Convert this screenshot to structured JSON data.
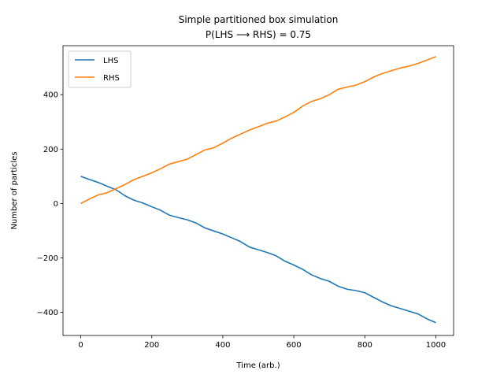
{
  "chart_data": {
    "type": "line",
    "title": "Simple partitioned box simulation",
    "subtitle": "P(LHS ⟶ RHS) = 0.75",
    "xlabel": "Time (arb.)",
    "ylabel": "Number of particles",
    "xlim": [
      -50,
      1050
    ],
    "ylim": [
      -485,
      580
    ],
    "xticks": [
      0,
      200,
      400,
      600,
      800,
      1000
    ],
    "yticks": [
      -400,
      -200,
      0,
      200,
      400
    ],
    "ytick_labels": [
      "−400",
      "−200",
      "0",
      "200",
      "400"
    ],
    "grid": false,
    "legend": "top-left",
    "series": [
      {
        "name": "LHS",
        "color": "#1f77b4",
        "x": [
          0,
          25,
          50,
          75,
          100,
          125,
          150,
          175,
          200,
          225,
          250,
          275,
          300,
          325,
          350,
          375,
          400,
          425,
          450,
          475,
          500,
          525,
          550,
          575,
          600,
          625,
          650,
          675,
          700,
          725,
          750,
          775,
          800,
          825,
          850,
          875,
          900,
          925,
          950,
          975,
          1000
        ],
        "y": [
          100,
          88,
          77,
          63,
          50,
          28,
          12,
          2,
          -12,
          -25,
          -43,
          -52,
          -60,
          -72,
          -90,
          -101,
          -112,
          -126,
          -140,
          -160,
          -170,
          -180,
          -192,
          -212,
          -226,
          -242,
          -262,
          -276,
          -286,
          -304,
          -315,
          -320,
          -328,
          -345,
          -362,
          -376,
          -386,
          -396,
          -406,
          -424,
          -438
        ]
      },
      {
        "name": "RHS",
        "color": "#ff7f0e",
        "x": [
          0,
          25,
          50,
          75,
          100,
          125,
          150,
          175,
          200,
          225,
          250,
          275,
          300,
          325,
          350,
          375,
          400,
          425,
          450,
          475,
          500,
          525,
          550,
          575,
          600,
          625,
          650,
          675,
          700,
          725,
          750,
          775,
          800,
          825,
          850,
          875,
          900,
          925,
          950,
          975,
          1000
        ],
        "y": [
          0,
          17,
          32,
          40,
          55,
          70,
          88,
          100,
          113,
          128,
          145,
          154,
          163,
          180,
          197,
          205,
          222,
          240,
          255,
          270,
          282,
          295,
          303,
          318,
          335,
          358,
          375,
          385,
          400,
          420,
          428,
          435,
          448,
          465,
          478,
          488,
          498,
          505,
          515,
          527,
          540
        ]
      }
    ]
  }
}
